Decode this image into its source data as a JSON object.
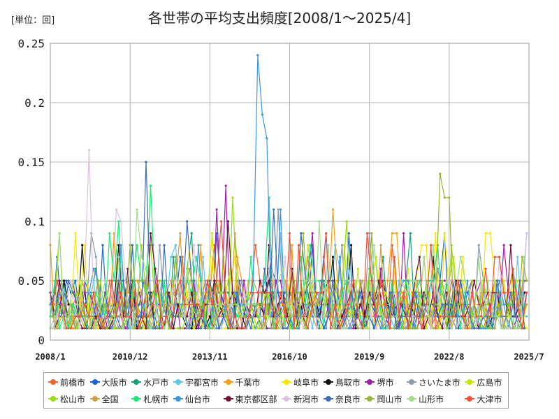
{
  "unit_label": "[単位：回]",
  "chart_data": {
    "type": "line",
    "title": "各世帯の平均支出頻度[2008/1～2025/4]",
    "xlabel": "",
    "ylabel": "",
    "x_ticks": [
      "2008/1",
      "2010/12",
      "2013/11",
      "2016/10",
      "2019/9",
      "2022/8",
      "2025/7"
    ],
    "y_ticks": [
      "0",
      "0.05",
      "0.1",
      "0.15",
      "0.2",
      "0.25"
    ],
    "ylim": [
      0,
      0.25
    ],
    "x_range_months": [
      0,
      210
    ],
    "grid": true,
    "legend_position": "bottom",
    "series": [
      {
        "name": "前橋市",
        "color": "#f0642d",
        "peaks": [
          [
            6,
            0.05
          ],
          [
            90,
            0.08
          ],
          [
            150,
            0.08
          ],
          [
            165,
            0.07
          ],
          [
            209,
            0.07
          ]
        ]
      },
      {
        "name": "大阪市",
        "color": "#1e64d2",
        "peaks": [
          [
            8,
            0.04
          ],
          [
            40,
            0.05
          ],
          [
            110,
            0.04
          ],
          [
            170,
            0.05
          ]
        ]
      },
      {
        "name": "水戸市",
        "color": "#14a078",
        "peaks": [
          [
            20,
            0.06
          ],
          [
            60,
            0.06
          ],
          [
            120,
            0.05
          ],
          [
            190,
            0.04
          ]
        ]
      },
      {
        "name": "宇都宮市",
        "color": "#5ac8f0",
        "peaks": [
          [
            30,
            0.08
          ],
          [
            100,
            0.09
          ],
          [
            140,
            0.05
          ],
          [
            205,
            0.07
          ]
        ]
      },
      {
        "name": "千葉市",
        "color": "#f5a014",
        "peaks": [
          [
            15,
            0.05
          ],
          [
            125,
            0.11
          ],
          [
            180,
            0.05
          ]
        ]
      },
      {
        "name": "岐阜市",
        "color": "#fae600",
        "peaks": [
          [
            10,
            0.09
          ],
          [
            70,
            0.07
          ],
          [
            160,
            0.06
          ],
          [
            190,
            0.09
          ]
        ]
      },
      {
        "name": "鳥取市",
        "color": "#111111",
        "peaks": [
          [
            14,
            0.08
          ],
          [
            31,
            0.08
          ],
          [
            97,
            0.08
          ],
          [
            133,
            0.08
          ]
        ]
      },
      {
        "name": "堺市",
        "color": "#a01eaa",
        "peaks": [
          [
            76,
            0.13
          ],
          [
            73,
            0.11
          ],
          [
            114,
            0.09
          ],
          [
            145,
            0.06
          ]
        ]
      },
      {
        "name": "さいたま市",
        "color": "#8c9aaa",
        "peaks": [
          [
            100,
            0.11
          ],
          [
            140,
            0.09
          ],
          [
            170,
            0.06
          ]
        ]
      },
      {
        "name": "広島市",
        "color": "#c8e600",
        "peaks": [
          [
            70,
            0.09
          ],
          [
            112,
            0.08
          ],
          [
            150,
            0.05
          ]
        ]
      },
      {
        "name": "松山市",
        "color": "#96dc14",
        "peaks": [
          [
            5,
            0.09
          ],
          [
            45,
            0.08
          ],
          [
            80,
            0.12
          ],
          [
            130,
            0.1
          ]
        ]
      },
      {
        "name": "全国",
        "color": "#d2a046",
        "peaks": [
          [
            50,
            0.04
          ],
          [
            100,
            0.04
          ],
          [
            150,
            0.03
          ],
          [
            200,
            0.03
          ]
        ]
      },
      {
        "name": "札幌市",
        "color": "#1ee678",
        "peaks": [
          [
            30,
            0.1
          ],
          [
            44,
            0.13
          ],
          [
            96,
            0.12
          ],
          [
            170,
            0.08
          ]
        ]
      },
      {
        "name": "仙台市",
        "color": "#3c96e6",
        "peaks": [
          [
            91,
            0.24
          ],
          [
            92,
            0.19
          ],
          [
            93,
            0.19
          ],
          [
            94,
            0.17
          ],
          [
            95,
            0.17
          ],
          [
            101,
            0.11
          ]
        ]
      },
      {
        "name": "東京都区部",
        "color": "#6e1432",
        "peaks": [
          [
            35,
            0.06
          ],
          [
            78,
            0.1
          ],
          [
            160,
            0.05
          ]
        ]
      },
      {
        "name": "新潟市",
        "color": "#dcc3dc",
        "peaks": [
          [
            16,
            0.16
          ],
          [
            29,
            0.11
          ],
          [
            31,
            0.1
          ],
          [
            96,
            0.07
          ]
        ]
      },
      {
        "name": "奈良市",
        "color": "#3c6eb4",
        "peaks": [
          [
            42,
            0.15
          ],
          [
            60,
            0.1
          ],
          [
            99,
            0.11
          ],
          [
            180,
            0.05
          ]
        ]
      },
      {
        "name": "岡山市",
        "color": "#96b432",
        "peaks": [
          [
            171,
            0.14
          ],
          [
            172,
            0.13
          ],
          [
            173,
            0.12
          ],
          [
            174,
            0.12
          ],
          [
            140,
            0.09
          ]
        ]
      },
      {
        "name": "山形市",
        "color": "#a0dc8c",
        "peaks": [
          [
            38,
            0.11
          ],
          [
            118,
            0.1
          ],
          [
            160,
            0.05
          ]
        ]
      },
      {
        "name": "大津市",
        "color": "#f0503c",
        "peaks": [
          [
            75,
            0.1
          ],
          [
            150,
            0.07
          ],
          [
            190,
            0.06
          ]
        ]
      }
    ]
  }
}
